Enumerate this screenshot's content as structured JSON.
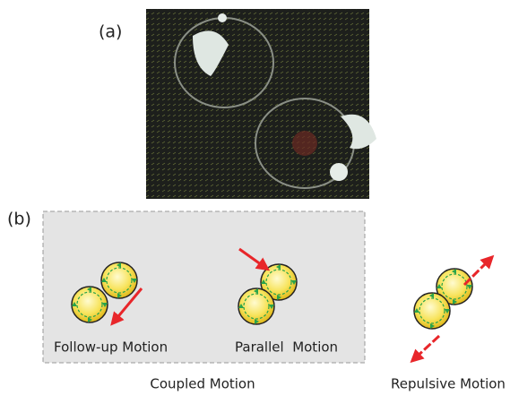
{
  "panel_a": {
    "label": "(a)"
  },
  "panel_b": {
    "label": "(b)",
    "groups": [
      {
        "title": "Coupled Motion",
        "motions": [
          "Follow-up Motion",
          "Parallel  Motion"
        ]
      },
      {
        "title": "Repulsive Motion"
      }
    ]
  }
}
